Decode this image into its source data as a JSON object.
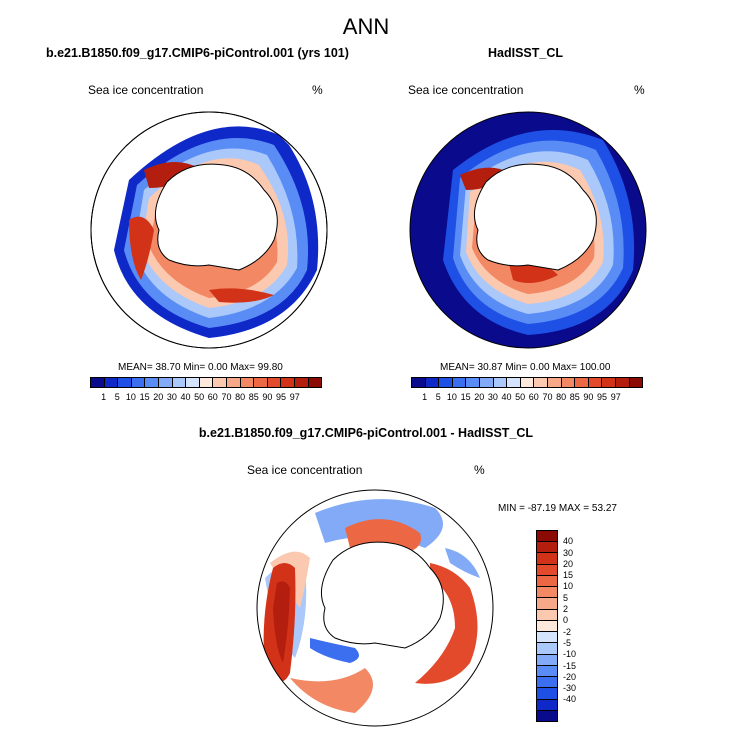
{
  "main_title": "ANN",
  "panels": [
    {
      "title": "b.e21.B1850.f09_g17.CMIP6-piControl.001 (yrs 101)",
      "variable": "Sea ice concentration",
      "unit": "%",
      "stats": "MEAN=  38.70  Min=   0.00  Max=  99.80"
    },
    {
      "title": "HadISST_CL",
      "variable": "Sea ice concentration",
      "unit": "%",
      "stats": "MEAN=  30.87  Min=   0.00  Max= 100.00"
    },
    {
      "title": "b.e21.B1850.f09_g17.CMIP6-piControl.001 - HadISST_CL",
      "variable": "Sea ice concentration",
      "unit": "%",
      "stats": "MIN = -87.19 MAX =  53.27"
    }
  ],
  "colorbar_abs": {
    "colors": [
      "#0a0a8c",
      "#0f28c8",
      "#1e50e6",
      "#3c6ef0",
      "#5a8cf5",
      "#82aaf7",
      "#aac8fa",
      "#d4e4fc",
      "#fde8dc",
      "#fbc8b0",
      "#f7a888",
      "#f28864",
      "#ec6844",
      "#e34a2c",
      "#d23218",
      "#b41e0e",
      "#8c0a04"
    ],
    "ticks": [
      "1",
      "5",
      "10",
      "15",
      "20",
      "30",
      "40",
      "50",
      "60",
      "70",
      "80",
      "85",
      "90",
      "95",
      "97"
    ]
  },
  "colorbar_diff": {
    "colors": [
      "#8c0a04",
      "#b41e0e",
      "#d23218",
      "#e34a2c",
      "#ec6844",
      "#f28864",
      "#f7a888",
      "#fbc8b0",
      "#fde8dc",
      "#d4e4fc",
      "#aac8fa",
      "#82aaf7",
      "#5a8cf5",
      "#3c6ef0",
      "#1e50e6",
      "#0f28c8",
      "#0a0a8c"
    ],
    "ticks": [
      "40",
      "30",
      "20",
      "15",
      "10",
      "5",
      "2",
      "0",
      "-2",
      "-5",
      "-10",
      "-15",
      "-20",
      "-30",
      "-40"
    ]
  }
}
